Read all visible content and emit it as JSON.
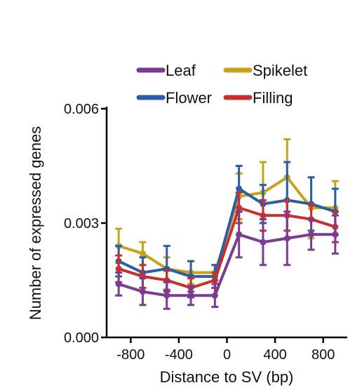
{
  "chart_data": {
    "type": "line",
    "title": "",
    "xlabel": "Distance to SV  (bp)",
    "ylabel": "Number of expressed genes",
    "xlim": [
      -1000,
      1000
    ],
    "ylim": [
      0,
      0.006
    ],
    "x_ticks": [
      -800,
      -400,
      0,
      400,
      800
    ],
    "x_tick_labels": [
      "-800",
      "-400",
      "0",
      "400",
      "800"
    ],
    "y_ticks": [
      0,
      0.003,
      0.006
    ],
    "y_tick_labels": [
      "0.000",
      "0.003",
      "0.006"
    ],
    "grid": false,
    "legend_position": "top",
    "x": [
      -900,
      -700,
      -500,
      -300,
      -100,
      100,
      300,
      500,
      700,
      900
    ],
    "series": [
      {
        "name": "Spikelet",
        "color": "#c9a21c",
        "values": [
          0.0024,
          0.0022,
          0.0018,
          0.0017,
          0.0017,
          0.0037,
          0.0038,
          0.0042,
          0.0034,
          0.0034
        ],
        "errors": [
          0.00045,
          0.0003,
          0.0003,
          0.0003,
          0.0002,
          0.0006,
          0.0008,
          0.001,
          0.0008,
          0.0007
        ]
      },
      {
        "name": "Flower",
        "color": "#2b5ea7",
        "values": [
          0.002,
          0.0017,
          0.0018,
          0.0016,
          0.0016,
          0.0039,
          0.0035,
          0.0036,
          0.0035,
          0.0033
        ],
        "errors": [
          0.0004,
          0.0004,
          0.0006,
          0.0004,
          0.0003,
          0.0006,
          0.0005,
          0.001,
          0.0007,
          0.0006
        ]
      },
      {
        "name": "Filling",
        "color": "#c7302c",
        "values": [
          0.0018,
          0.0016,
          0.0015,
          0.0013,
          0.0015,
          0.0034,
          0.0032,
          0.0032,
          0.0031,
          0.0029
        ],
        "errors": [
          0.00035,
          0.0003,
          0.00025,
          0.00025,
          0.0002,
          0.0004,
          0.0004,
          0.0004,
          0.0004,
          0.0004
        ]
      },
      {
        "name": "Leaf",
        "color": "#7b3b93",
        "values": [
          0.0014,
          0.0012,
          0.0011,
          0.0011,
          0.0011,
          0.0027,
          0.0025,
          0.0026,
          0.0027,
          0.0027
        ],
        "errors": [
          0.0003,
          0.00035,
          0.00035,
          0.00025,
          0.0003,
          0.0006,
          0.0006,
          0.0007,
          0.0004,
          0.0005
        ]
      }
    ],
    "legend": {
      "rows": [
        [
          "Leaf",
          "Spikelet"
        ],
        [
          "Flower",
          "Filling"
        ]
      ]
    }
  }
}
